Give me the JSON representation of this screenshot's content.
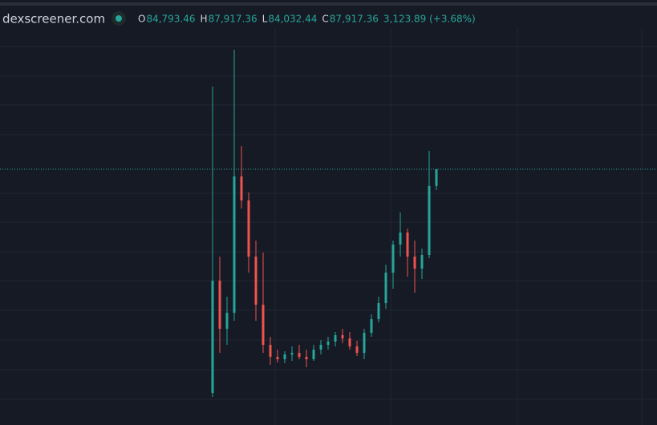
{
  "header": {
    "site": "dexscreener.com",
    "ohlc": [
      {
        "label": "O",
        "value": "84,793.46"
      },
      {
        "label": "H",
        "value": "87,917.36"
      },
      {
        "label": "L",
        "value": "84,032.44"
      },
      {
        "label": "C",
        "value": "87,917.36"
      }
    ],
    "change": "3,123.89 (+3.68%)"
  },
  "chart_data": {
    "type": "candlestick",
    "up_color": "#26a69a",
    "down_color": "#ef5350",
    "ylim": [
      40067,
      114317
    ],
    "open": [
      46067,
      67067,
      58067,
      61067,
      86567,
      82067,
      71567,
      62567,
      55067,
      52817,
      52367,
      53267,
      53567,
      52817,
      52367,
      54167,
      55067,
      55667,
      56867,
      56267,
      54767,
      53567,
      57317,
      59867,
      62867,
      68567,
      73817,
      76067,
      71567,
      69317,
      71867,
      84793.46
    ],
    "high": [
      103367,
      71567,
      64067,
      110267,
      92267,
      83567,
      74567,
      72317,
      56567,
      54167,
      53867,
      54767,
      55067,
      54167,
      55067,
      55967,
      56567,
      57467,
      58067,
      57467,
      55817,
      58067,
      60767,
      64067,
      70067,
      74567,
      79817,
      76817,
      74567,
      73067,
      91367,
      87917.36
    ],
    "low": [
      45317,
      53567,
      55067,
      59567,
      80567,
      68567,
      59567,
      53567,
      51317,
      51767,
      51617,
      52067,
      52367,
      50867,
      52067,
      53267,
      54167,
      54767,
      55367,
      54167,
      52967,
      52367,
      56567,
      59267,
      61817,
      65567,
      71567,
      67817,
      64817,
      67367,
      71267,
      84032.44
    ],
    "close": [
      67067,
      58067,
      61067,
      86567,
      82067,
      71567,
      62567,
      55067,
      52817,
      52367,
      53267,
      53567,
      52817,
      52367,
      54167,
      55067,
      55667,
      56867,
      56267,
      54767,
      53567,
      57317,
      59867,
      62867,
      68567,
      73817,
      76067,
      71567,
      69317,
      71867,
      84767,
      87917.36
    ]
  }
}
